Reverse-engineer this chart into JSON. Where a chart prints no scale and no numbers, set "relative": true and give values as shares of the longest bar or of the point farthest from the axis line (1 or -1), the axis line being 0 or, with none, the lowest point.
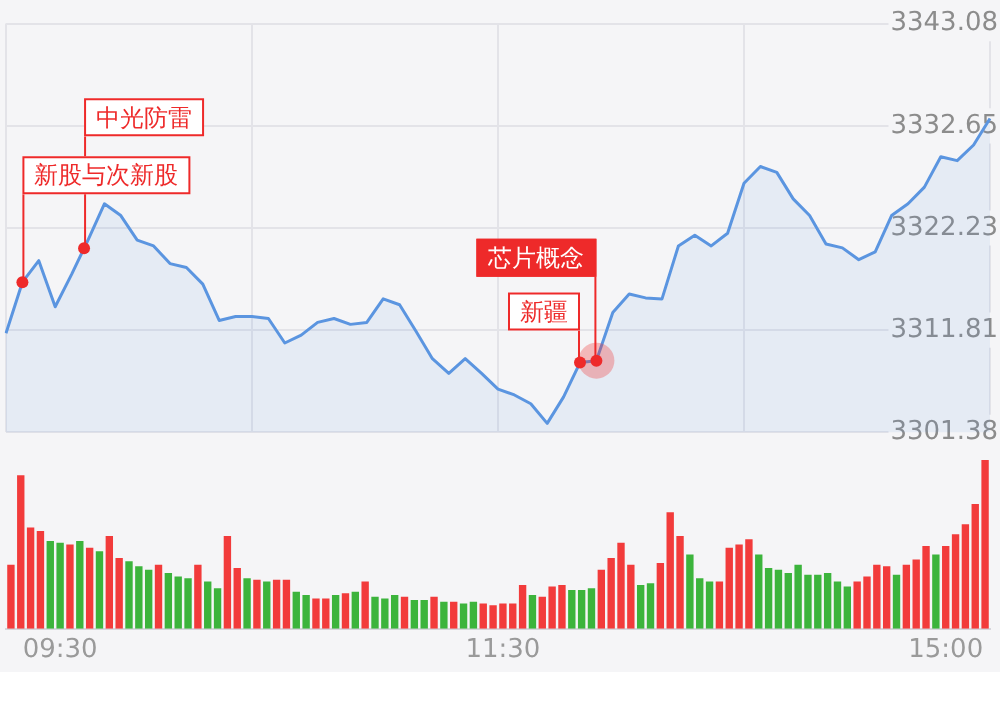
{
  "chart_data": [
    {
      "type": "area",
      "categories": [
        null,
        null,
        null,
        null,
        null,
        null,
        null,
        null,
        null,
        null,
        null,
        null,
        null,
        null,
        null,
        null,
        null,
        null,
        null,
        null,
        null,
        null,
        null,
        null,
        null,
        null,
        null,
        null,
        null,
        null,
        null,
        null,
        null,
        null,
        null,
        null,
        null,
        null,
        null,
        null,
        null,
        null,
        null,
        null,
        null,
        null,
        null,
        null,
        null,
        null,
        null,
        null,
        null,
        null,
        null,
        null,
        null,
        null,
        null,
        null,
        null
      ],
      "series": [
        {
          "color": "#5b95e0",
          "values": [
            3311.5,
            3316.7,
            3318.9,
            3314.2,
            3317.5,
            3321.0,
            3324.7,
            3323.5,
            3321.0,
            3320.4,
            3318.6,
            3318.2,
            3316.5,
            3312.8,
            3313.2,
            3313.2,
            3313.0,
            3310.5,
            3311.3,
            3312.6,
            3313.0,
            3312.4,
            3312.6,
            3315.0,
            3314.4,
            3311.7,
            3308.9,
            3307.4,
            3308.9,
            3307.4,
            3305.8,
            3305.2,
            3304.3,
            3302.3,
            3305.0,
            3308.5,
            3308.7,
            3313.6,
            3315.5,
            3315.1,
            3315.0,
            3320.4,
            3321.5,
            3320.4,
            3321.7,
            3326.8,
            3328.5,
            3327.9,
            3325.2,
            3323.5,
            3320.6,
            3320.2,
            3319.0,
            3319.8,
            3323.5,
            3324.7,
            3326.4,
            3329.5,
            3329.1,
            3330.7,
            3333.4
          ]
        }
      ],
      "ylim": [
        3301.38,
        3343.08
      ],
      "yticks": [
        3301.38,
        3311.81,
        3322.23,
        3332.65,
        3343.08
      ],
      "grid": true,
      "tick_labels": "y",
      "annotations": [
        "新股与次新股",
        "中光防雷",
        "芯片概念",
        "新疆"
      ]
    },
    {
      "type": "bar",
      "relative": true,
      "categories": [
        null,
        null,
        null,
        null,
        null,
        "09:30",
        null,
        null,
        null,
        null,
        null,
        null,
        null,
        null,
        null,
        null,
        null,
        null,
        null,
        null,
        null,
        null,
        null,
        null,
        null,
        null,
        null,
        null,
        null,
        null,
        null,
        null,
        null,
        null,
        null,
        null,
        null,
        null,
        null,
        null,
        null,
        null,
        null,
        null,
        null,
        null,
        null,
        null,
        null,
        null,
        "11:30",
        null,
        null,
        null,
        null,
        null,
        null,
        null,
        null,
        null,
        null,
        null,
        null,
        null,
        null,
        null,
        null,
        null,
        null,
        null,
        null,
        null,
        null,
        null,
        null,
        null,
        null,
        null,
        null,
        null,
        null,
        null,
        null,
        null,
        null,
        null,
        null,
        null,
        null,
        null,
        null,
        null,
        null,
        null,
        null,
        "15:00",
        null,
        null,
        null,
        null
      ],
      "values": [
        0.38,
        0.91,
        0.6,
        0.58,
        0.52,
        0.51,
        0.5,
        0.52,
        0.48,
        0.46,
        0.55,
        0.42,
        0.4,
        0.37,
        0.35,
        0.38,
        0.33,
        0.31,
        0.3,
        0.38,
        0.28,
        0.24,
        0.55,
        0.36,
        0.3,
        0.29,
        0.28,
        0.29,
        0.29,
        0.22,
        0.2,
        0.18,
        0.18,
        0.2,
        0.21,
        0.22,
        0.28,
        0.19,
        0.18,
        0.2,
        0.19,
        0.17,
        0.17,
        0.19,
        0.16,
        0.16,
        0.15,
        0.16,
        0.15,
        0.14,
        0.15,
        0.15,
        0.26,
        0.2,
        0.19,
        0.25,
        0.26,
        0.23,
        0.23,
        0.24,
        0.35,
        0.42,
        0.51,
        0.38,
        0.26,
        0.27,
        0.39,
        0.69,
        0.55,
        0.44,
        0.3,
        0.28,
        0.28,
        0.48,
        0.5,
        0.53,
        0.44,
        0.36,
        0.35,
        0.33,
        0.38,
        0.32,
        0.32,
        0.33,
        0.28,
        0.25,
        0.28,
        0.31,
        0.38,
        0.37,
        0.32,
        0.38,
        0.41,
        0.49,
        0.44,
        0.49,
        0.56,
        0.62,
        0.74,
        1.0
      ],
      "colors": [
        "#f23b3b",
        "#f23b3b",
        "#f23b3b",
        "#f23b3b",
        "#3cb43c",
        "#3cb43c",
        "#f23b3b",
        "#3cb43c",
        "#f23b3b",
        "#3cb43c",
        "#f23b3b",
        "#f23b3b",
        "#3cb43c",
        "#3cb43c",
        "#3cb43c",
        "#f23b3b",
        "#3cb43c",
        "#3cb43c",
        "#3cb43c",
        "#f23b3b",
        "#3cb43c",
        "#3cb43c",
        "#f23b3b",
        "#f23b3b",
        "#3cb43c",
        "#f23b3b",
        "#3cb43c",
        "#f23b3b",
        "#f23b3b",
        "#3cb43c",
        "#3cb43c",
        "#f23b3b",
        "#f23b3b",
        "#3cb43c",
        "#f23b3b",
        "#3cb43c",
        "#f23b3b",
        "#3cb43c",
        "#3cb43c",
        "#3cb43c",
        "#f23b3b",
        "#3cb43c",
        "#3cb43c",
        "#f23b3b",
        "#3cb43c",
        "#f23b3b",
        "#3cb43c",
        "#3cb43c",
        "#f23b3b",
        "#f23b3b",
        "#f23b3b",
        "#f23b3b",
        "#f23b3b",
        "#3cb43c",
        "#f23b3b",
        "#f23b3b",
        "#f23b3b",
        "#3cb43c",
        "#3cb43c",
        "#3cb43c",
        "#f23b3b",
        "#f23b3b",
        "#f23b3b",
        "#f23b3b",
        "#3cb43c",
        "#3cb43c",
        "#f23b3b",
        "#f23b3b",
        "#f23b3b",
        "#3cb43c",
        "#3cb43c",
        "#3cb43c",
        "#f23b3b",
        "#f23b3b",
        "#f23b3b",
        "#f23b3b",
        "#3cb43c",
        "#3cb43c",
        "#3cb43c",
        "#3cb43c",
        "#3cb43c",
        "#3cb43c",
        "#3cb43c",
        "#3cb43c",
        "#3cb43c",
        "#3cb43c",
        "#f23b3b",
        "#f23b3b",
        "#f23b3b",
        "#f23b3b",
        "#3cb43c",
        "#f23b3b",
        "#f23b3b",
        "#f23b3b",
        "#3cb43c",
        "#f23b3b",
        "#f23b3b",
        "#f23b3b",
        "#f23b3b",
        "#f23b3b"
      ],
      "tick_labels": "x"
    }
  ]
}
